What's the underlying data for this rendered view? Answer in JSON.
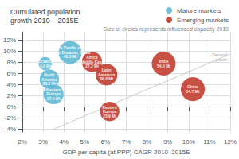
{
  "chart_data": {
    "type": "scatter",
    "title": "Cumulated population\ngrowth 2010 – 2015E",
    "subtitle": "Size of circles represents influenced capacity 2010",
    "x_label": "GDP per capita (at PPP) CAGR 2010–2015E",
    "xlim": [
      2,
      12
    ],
    "ylim": [
      -4.5,
      13.5
    ],
    "xticks": [
      {
        "value": 2,
        "label": "2%"
      },
      {
        "value": 3,
        "label": "3%"
      },
      {
        "value": 4,
        "label": "4%"
      },
      {
        "value": 5,
        "label": "5%"
      },
      {
        "value": 6,
        "label": "6%"
      },
      {
        "value": 7,
        "label": "7%"
      },
      {
        "value": 8,
        "label": "8%"
      },
      {
        "value": 9,
        "label": "9%"
      },
      {
        "value": 10,
        "label": "10%"
      },
      {
        "value": 11,
        "label": "11%"
      },
      {
        "value": 12,
        "label": "12%"
      }
    ],
    "yticks": [
      {
        "value": -4,
        "label": "-4%"
      },
      {
        "value": -2,
        "label": "-2%"
      },
      {
        "value": 0,
        "label": "0%"
      },
      {
        "value": 2,
        "label": "2%"
      },
      {
        "value": 4,
        "label": "4%"
      },
      {
        "value": 6,
        "label": "6%"
      },
      {
        "value": 8,
        "label": "8%"
      },
      {
        "value": 10,
        "label": "10%"
      },
      {
        "value": 12,
        "label": "12%"
      }
    ],
    "grid": true,
    "legend": "upper right",
    "series": [
      {
        "name": "Mature markets",
        "color": "#5bb8d4",
        "x": [
          3.1,
          3.3,
          3.5,
          4.3
        ],
        "values": [
          7.8,
          5.0,
          2.3,
          9.8
        ],
        "sizes": [
          4.9,
          23.2,
          27.0,
          46.3
        ],
        "labels": [
          "Oceania\n4.9 Mt",
          "North\nAmerica\n23.2 Mt",
          "Western\nEuropa\n27.0 Mt",
          "Asia Pacific excl.\nIndia, Oceania, China\n46.3 Mt"
        ]
      },
      {
        "name": "Emerging markets",
        "color": "#c0392b",
        "x": [
          5.35,
          6.05,
          6.2,
          8.8,
          10.2
        ],
        "values": [
          8.1,
          5.8,
          -0.8,
          7.8,
          3.2
        ],
        "sizes": [
          27.2,
          36.6,
          23.9,
          54.0,
          54.7
        ],
        "labels": [
          "Africa\nMiddle East\n27.2 Mt",
          "Latin\nAmeroca\n36.6 Mt",
          "Eastern\nEuropa\n23.9 Mt",
          "India\n54.0 Mt",
          "China\n54.7 Mt"
        ]
      }
    ],
    "reference_lines": [
      {
        "x": [
          3.5,
          12.0
        ],
        "y": [
          -4.0,
          9.5
        ]
      }
    ],
    "annotations": [
      {
        "text": "Demand\ngrowth",
        "x": 11.85,
        "y": 9.8
      }
    ]
  }
}
